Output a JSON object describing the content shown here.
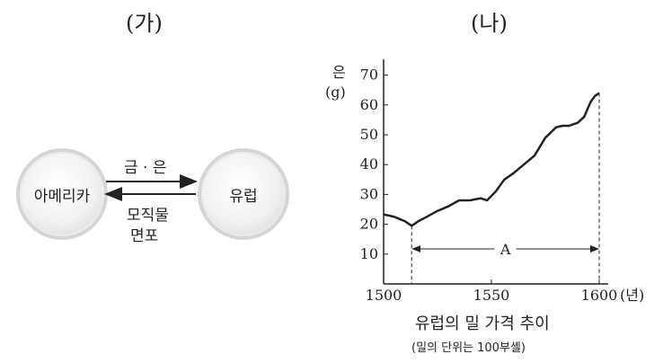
{
  "panels": {
    "left_label": "(가)",
    "right_label": "(나)"
  },
  "flow": {
    "left_node": "아메리카",
    "right_node": "유럽",
    "top_arrow_label": "금 · 은",
    "bottom_arrow_label_1": "모직물",
    "bottom_arrow_label_2": "면포"
  },
  "chart_data": {
    "type": "line",
    "ylabel_1": "은",
    "ylabel_2": "(g)",
    "xunit": "(년)",
    "xlim": [
      1500,
      1600
    ],
    "ylim": [
      0,
      75
    ],
    "xticks": [
      "1500",
      "1550",
      "1600"
    ],
    "yticks": [
      "10",
      "20",
      "30",
      "40",
      "50",
      "60",
      "70"
    ],
    "bracket_label": "A",
    "bracket_range": [
      1513,
      1600
    ],
    "title": "유럽의 밀 가격 추이",
    "subtitle": "(밀의 단위는 100부셸)",
    "x": [
      1500,
      1505,
      1510,
      1513,
      1516,
      1520,
      1525,
      1530,
      1535,
      1540,
      1545,
      1548,
      1552,
      1556,
      1560,
      1565,
      1570,
      1575,
      1580,
      1583,
      1586,
      1590,
      1593,
      1596,
      1598,
      1600
    ],
    "values": [
      23.3,
      22.5,
      21,
      19.5,
      21,
      22.5,
      24.5,
      26,
      28,
      28,
      28.7,
      28,
      31,
      35,
      37,
      40,
      43,
      49,
      52.5,
      53,
      53,
      54,
      56,
      61,
      63,
      64
    ]
  },
  "colors": {
    "line": "#222222",
    "circle_border": "#d6d6d6"
  }
}
